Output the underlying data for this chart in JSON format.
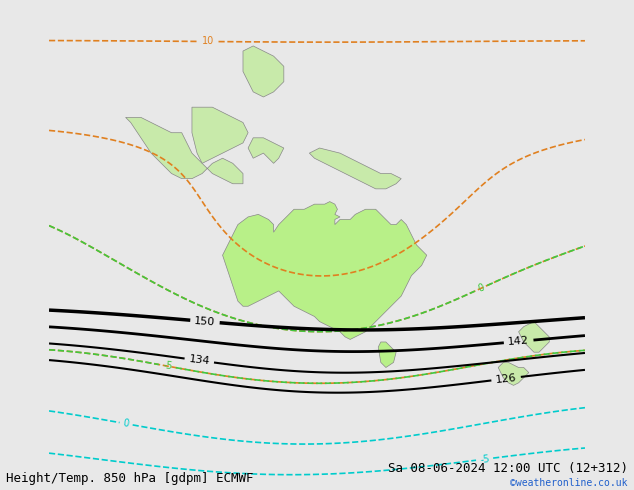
{
  "title_left": "Height/Temp. 850 hPa [gdpm] ECMWF",
  "title_right": "Sa 08-06-2024 12:00 UTC (12+312)",
  "copyright": "©weatheronline.co.uk",
  "bg_color": "#e8e8e8",
  "land_color": "#c8eaaa",
  "australia_color": "#b8f088",
  "sea_color": "#e8e8e8",
  "black_contour_color": "#000000",
  "orange_contour_color": "#e08020",
  "green_contour_color": "#40c840",
  "cyan_contour_color": "#00cccc",
  "title_fontsize": 9,
  "copyright_color": "#2060cc",
  "label_fontsize": 8
}
